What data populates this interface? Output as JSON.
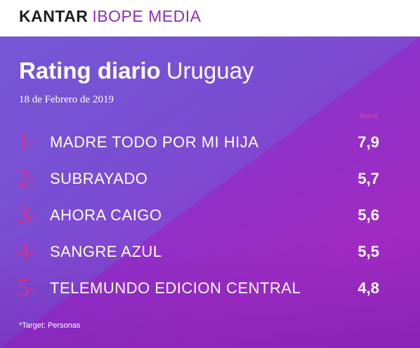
{
  "brand": {
    "part1": "KANTAR",
    "part2": "IBOPE MEDIA"
  },
  "header": {
    "title_bold": "Rating diario",
    "title_light": "Uruguay",
    "date": "18 de Febrero de 2019",
    "column_label": "Rating"
  },
  "rows": [
    {
      "rank": "1",
      "suffix": "o",
      "program": "MADRE TODO POR MI HIJA",
      "rating": "7,9"
    },
    {
      "rank": "2",
      "suffix": "o",
      "program": "SUBRAYADO",
      "rating": "5,7"
    },
    {
      "rank": "3",
      "suffix": "o",
      "program": "AHORA CAIGO",
      "rating": "5,6"
    },
    {
      "rank": "4",
      "suffix": "o",
      "program": "SANGRE AZUL",
      "rating": "5,5"
    },
    {
      "rank": "5",
      "suffix": "o",
      "program": "TELEMUNDO EDICION CENTRAL",
      "rating": "4,8"
    }
  ],
  "footer": {
    "note": "*Target: Personas"
  },
  "colors": {
    "accent_rank": "#d0338f",
    "brand_purple": "#8e2fb5"
  }
}
